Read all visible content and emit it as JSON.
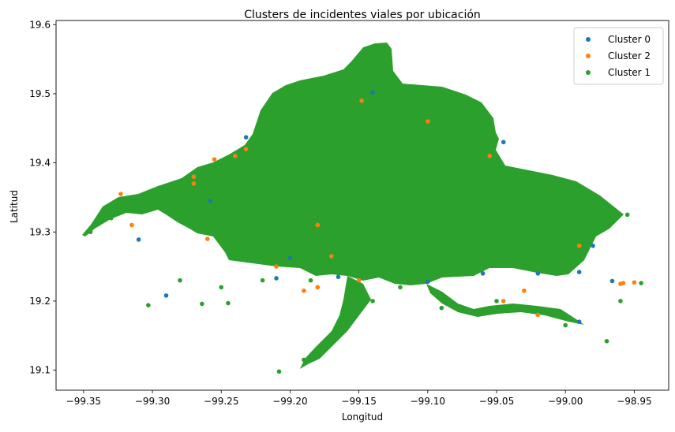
{
  "chart_data": {
    "type": "scatter",
    "title": "Clusters de incidentes viales por ubicación",
    "xlabel": "Longitud",
    "ylabel": "Latitud",
    "xlim": [
      -99.37,
      -98.925
    ],
    "ylim": [
      19.071,
      19.606
    ],
    "xticks": [
      -99.35,
      -99.3,
      -99.25,
      -99.2,
      -99.15,
      -99.1,
      -99.05,
      -99.0,
      -98.95
    ],
    "xtick_labels": [
      "−99.35",
      "−99.30",
      "−99.25",
      "−99.20",
      "−99.15",
      "−99.10",
      "−99.05",
      "−99.00",
      "−98.95"
    ],
    "yticks": [
      19.1,
      19.2,
      19.3,
      19.4,
      19.5,
      19.6
    ],
    "ytick_labels": [
      "19.1",
      "19.2",
      "19.3",
      "19.4",
      "19.5",
      "19.6"
    ],
    "legend_position": "top-right",
    "grid": false,
    "series": [
      {
        "name": "Cluster 0",
        "color": "#1f77b4",
        "points": [
          [
            -99.31,
            19.289
          ],
          [
            -99.29,
            19.208
          ],
          [
            -99.232,
            19.437
          ],
          [
            -99.21,
            19.233
          ],
          [
            -99.165,
            19.235
          ],
          [
            -99.14,
            19.502
          ],
          [
            -99.06,
            19.24
          ],
          [
            -99.045,
            19.43
          ],
          [
            -98.99,
            19.17
          ],
          [
            -98.99,
            19.242
          ],
          [
            -98.966,
            19.229
          ],
          [
            -99.258,
            19.345
          ],
          [
            -99.2,
            19.262
          ],
          [
            -99.1,
            19.228
          ],
          [
            -99.02,
            19.24
          ],
          [
            -98.98,
            19.28
          ]
        ]
      },
      {
        "name": "Cluster 2",
        "color": "#ff7f0e",
        "points": [
          [
            -99.323,
            19.355
          ],
          [
            -99.27,
            19.38
          ],
          [
            -99.24,
            19.41
          ],
          [
            -99.232,
            19.42
          ],
          [
            -99.19,
            19.215
          ],
          [
            -99.18,
            19.22
          ],
          [
            -99.17,
            19.265
          ],
          [
            -99.148,
            19.49
          ],
          [
            -99.26,
            19.29
          ],
          [
            -99.15,
            19.23
          ],
          [
            -99.1,
            19.46
          ],
          [
            -98.958,
            19.226
          ],
          [
            -98.95,
            19.227
          ],
          [
            -99.03,
            19.215
          ],
          [
            -99.02,
            19.18
          ],
          [
            -98.96,
            19.225
          ],
          [
            -99.21,
            19.25
          ],
          [
            -99.27,
            19.37
          ],
          [
            -99.255,
            19.405
          ],
          [
            -98.99,
            19.28
          ],
          [
            -99.055,
            19.41
          ],
          [
            -99.045,
            19.2
          ],
          [
            -99.18,
            19.31
          ],
          [
            -99.315,
            19.31
          ]
        ]
      },
      {
        "name": "Cluster 1",
        "color": "#2ca02c",
        "points": [
          [
            -99.303,
            19.194
          ],
          [
            -99.264,
            19.196
          ],
          [
            -99.245,
            19.197
          ],
          [
            -99.22,
            19.23
          ],
          [
            -99.208,
            19.098
          ],
          [
            -99.19,
            19.115
          ],
          [
            -99.17,
            19.14
          ],
          [
            -99.16,
            19.17
          ],
          [
            -99.345,
            19.3
          ],
          [
            -99.33,
            19.32
          ],
          [
            -99.28,
            19.23
          ],
          [
            -99.25,
            19.22
          ],
          [
            -98.97,
            19.142
          ],
          [
            -98.96,
            19.2
          ],
          [
            -98.955,
            19.325
          ],
          [
            -98.945,
            19.226
          ],
          [
            -98.98,
            19.3
          ],
          [
            -99.0,
            19.165
          ],
          [
            -99.05,
            19.2
          ],
          [
            -99.06,
            19.185
          ],
          [
            -99.12,
            19.22
          ],
          [
            -99.09,
            19.19
          ],
          [
            -99.14,
            19.2
          ],
          [
            -99.185,
            19.23
          ],
          [
            -99.14,
            19.56
          ],
          [
            -99.13,
            19.54
          ],
          [
            -99.15,
            19.52
          ],
          [
            -99.17,
            19.45
          ],
          [
            -99.1,
            19.44
          ],
          [
            -99.05,
            19.35
          ],
          [
            -99.22,
            19.33
          ],
          [
            -99.2,
            19.39
          ],
          [
            -99.3,
            19.36
          ],
          [
            -99.26,
            19.38
          ],
          [
            -99.08,
            19.26
          ],
          [
            -99.02,
            19.26
          ]
        ]
      }
    ]
  }
}
